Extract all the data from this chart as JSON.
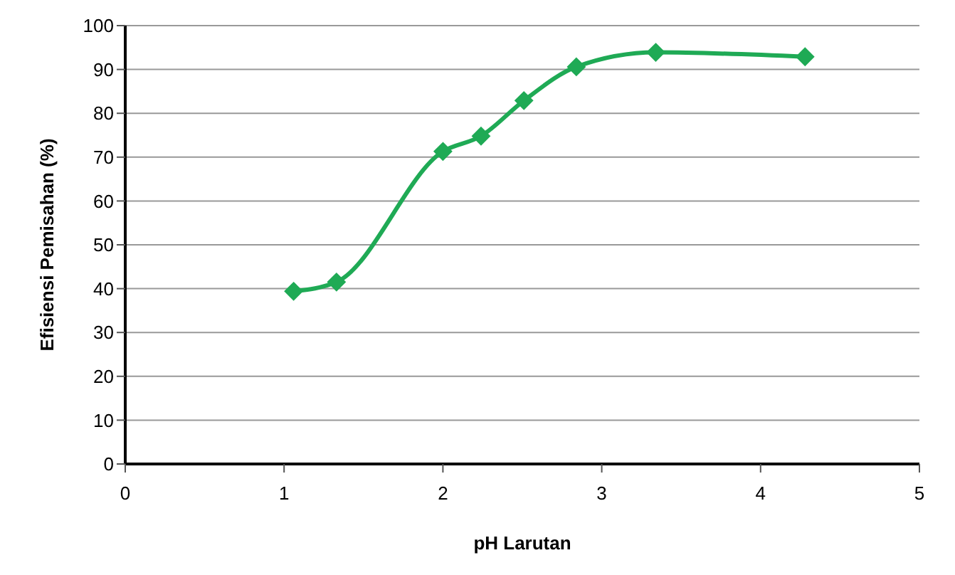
{
  "chart_data": {
    "type": "line",
    "xlabel": "pH Larutan",
    "ylabel": "Efisiensi Pemisahan (%)",
    "x": [
      1.06,
      1.33,
      2.0,
      2.24,
      2.51,
      2.84,
      3.34,
      4.28
    ],
    "series": [
      {
        "color": "#1faa55",
        "values": [
          39.4,
          41.5,
          71.3,
          74.8,
          82.9,
          90.6,
          93.9,
          92.9
        ]
      }
    ],
    "xlim": [
      0,
      5
    ],
    "xticks": [
      0,
      1,
      2,
      3,
      4,
      5
    ],
    "ylim": [
      0,
      100
    ],
    "yticks": [
      0,
      10,
      20,
      30,
      40,
      50,
      60,
      70,
      80,
      90,
      100
    ],
    "grid": "y",
    "marker": "diamond",
    "line_style": "solid",
    "legend": false
  }
}
